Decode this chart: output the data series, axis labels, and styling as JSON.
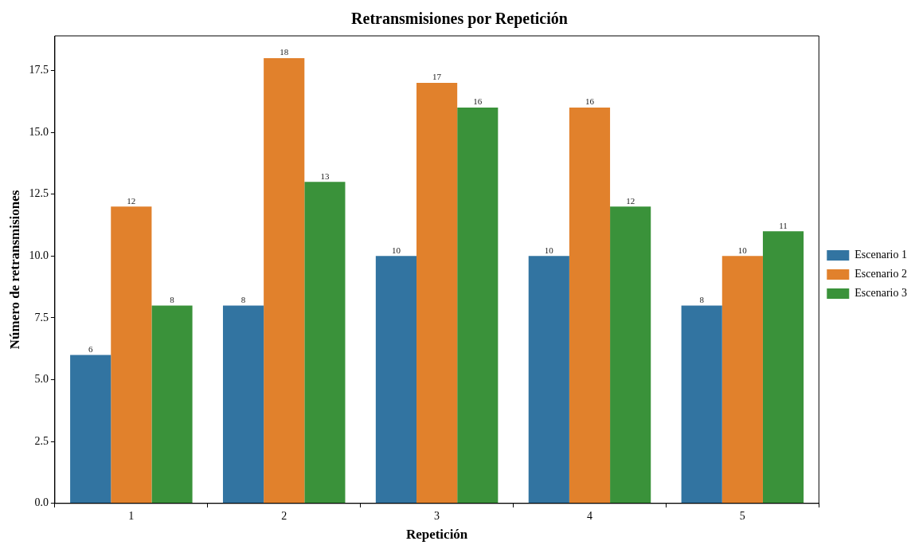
{
  "chart_data": {
    "type": "bar",
    "title": "Retransmisiones por Repetición",
    "xlabel": "Repetición",
    "ylabel": "Número de retransmisiones",
    "categories": [
      "1",
      "2",
      "3",
      "4",
      "5"
    ],
    "series": [
      {
        "name": "Escenario 1",
        "color": "#3274a1",
        "values": [
          6,
          8,
          10,
          10,
          8
        ]
      },
      {
        "name": "Escenario 2",
        "color": "#e1812c",
        "values": [
          12,
          18,
          17,
          16,
          10
        ]
      },
      {
        "name": "Escenario 3",
        "color": "#3a923a",
        "values": [
          8,
          13,
          16,
          12,
          11
        ]
      }
    ],
    "ylim": [
      0,
      18.9
    ],
    "yticks": [
      {
        "value": 0,
        "label": "0.0"
      },
      {
        "value": 2.5,
        "label": "2.5"
      },
      {
        "value": 5,
        "label": "5.0"
      },
      {
        "value": 7.5,
        "label": "7.5"
      },
      {
        "value": 10,
        "label": "10.0"
      },
      {
        "value": 12.5,
        "label": "12.5"
      },
      {
        "value": 15,
        "label": "15.0"
      },
      {
        "value": 17.5,
        "label": "17.5"
      }
    ],
    "grid": false,
    "legend": "right",
    "data_labels": true
  }
}
